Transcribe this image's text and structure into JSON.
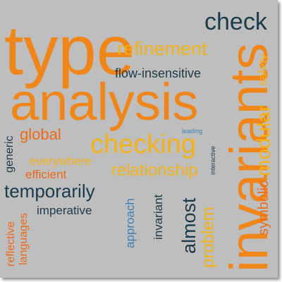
{
  "colors": {
    "background": "#bebebe",
    "dark_blue": "#1c3a4a",
    "orange": "#f0861a",
    "amber": "#f2b21a",
    "orange_red": "#ec6a1c",
    "steel_blue": "#3c80b8"
  },
  "words": {
    "type": "type",
    "analysis": "analysis",
    "invariants": "invariants",
    "check": "check",
    "refinement": "refinement",
    "flow_insensitive": "flow-insensitive",
    "safety": "safety",
    "modular": "modular",
    "symbolic": "symbolic",
    "global": "global",
    "generic": "generic",
    "checking": "checking",
    "leading": "leading",
    "interactive": "interactive",
    "everywhere": "everywhere",
    "efficient": "efficient",
    "relationship": "relationship",
    "temporarily": "temporarily",
    "imperative": "imperative",
    "approach": "approach",
    "invariant": "invariant",
    "almost": "almost",
    "problem": "problem",
    "reflective": "reflective",
    "languages": "languages"
  }
}
